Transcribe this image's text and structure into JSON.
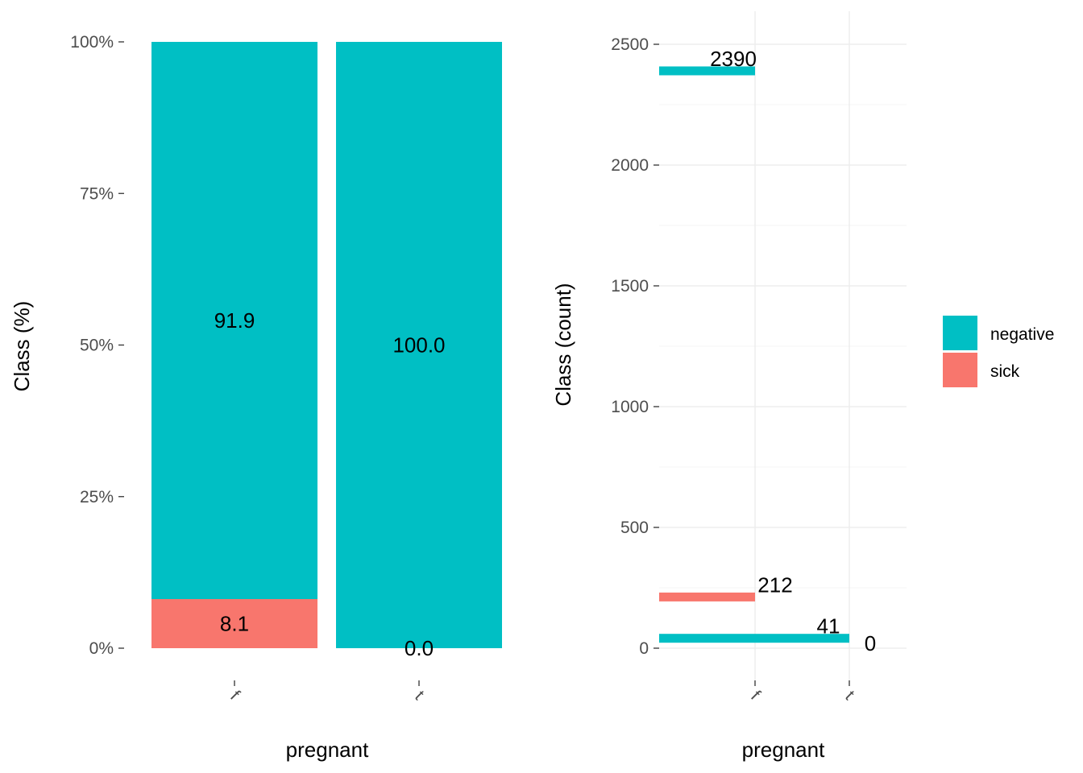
{
  "colors": {
    "negative": "#00BFC4",
    "sick": "#F8766D"
  },
  "chart_data": [
    {
      "type": "bar",
      "stacked": true,
      "percent": true,
      "categories": [
        "f",
        "t"
      ],
      "series": [
        {
          "name": "sick",
          "values": [
            8.1,
            0.0
          ],
          "color": "#F8766D"
        },
        {
          "name": "negative",
          "values": [
            91.9,
            100.0
          ],
          "color": "#00BFC4"
        }
      ],
      "data_labels": {
        "sick": [
          "8.1",
          "0.0"
        ],
        "negative": [
          "91.9",
          "100.0"
        ]
      },
      "xlabel": "pregnant",
      "ylabel": "Class  (%)",
      "ylim": [
        0,
        100
      ],
      "yticks": [
        0,
        25,
        50,
        75,
        100
      ],
      "ytick_labels": [
        "0%",
        "25%",
        "50%",
        "75%",
        "100%"
      ],
      "grid": false
    },
    {
      "type": "bar",
      "categories": [
        "f",
        "t"
      ],
      "series": [
        {
          "name": "negative",
          "values": [
            2390,
            41
          ],
          "color": "#00BFC4"
        },
        {
          "name": "sick",
          "values": [
            212,
            0
          ],
          "color": "#F8766D"
        }
      ],
      "data_labels": {
        "negative": [
          "2390",
          "41"
        ],
        "sick": [
          "212",
          "0"
        ]
      },
      "xlabel": "pregnant",
      "ylabel": "Class  (count)",
      "ylim": [
        0,
        2500
      ],
      "yticks": [
        0,
        500,
        1000,
        1500,
        2000,
        2500
      ],
      "ytick_labels": [
        "0",
        "500",
        "1000",
        "1500",
        "2000",
        "2500"
      ],
      "grid": true,
      "legend": {
        "placement": "right",
        "entries": [
          {
            "label": "negative",
            "color": "#00BFC4"
          },
          {
            "label": "sick",
            "color": "#F8766D"
          }
        ]
      }
    }
  ]
}
